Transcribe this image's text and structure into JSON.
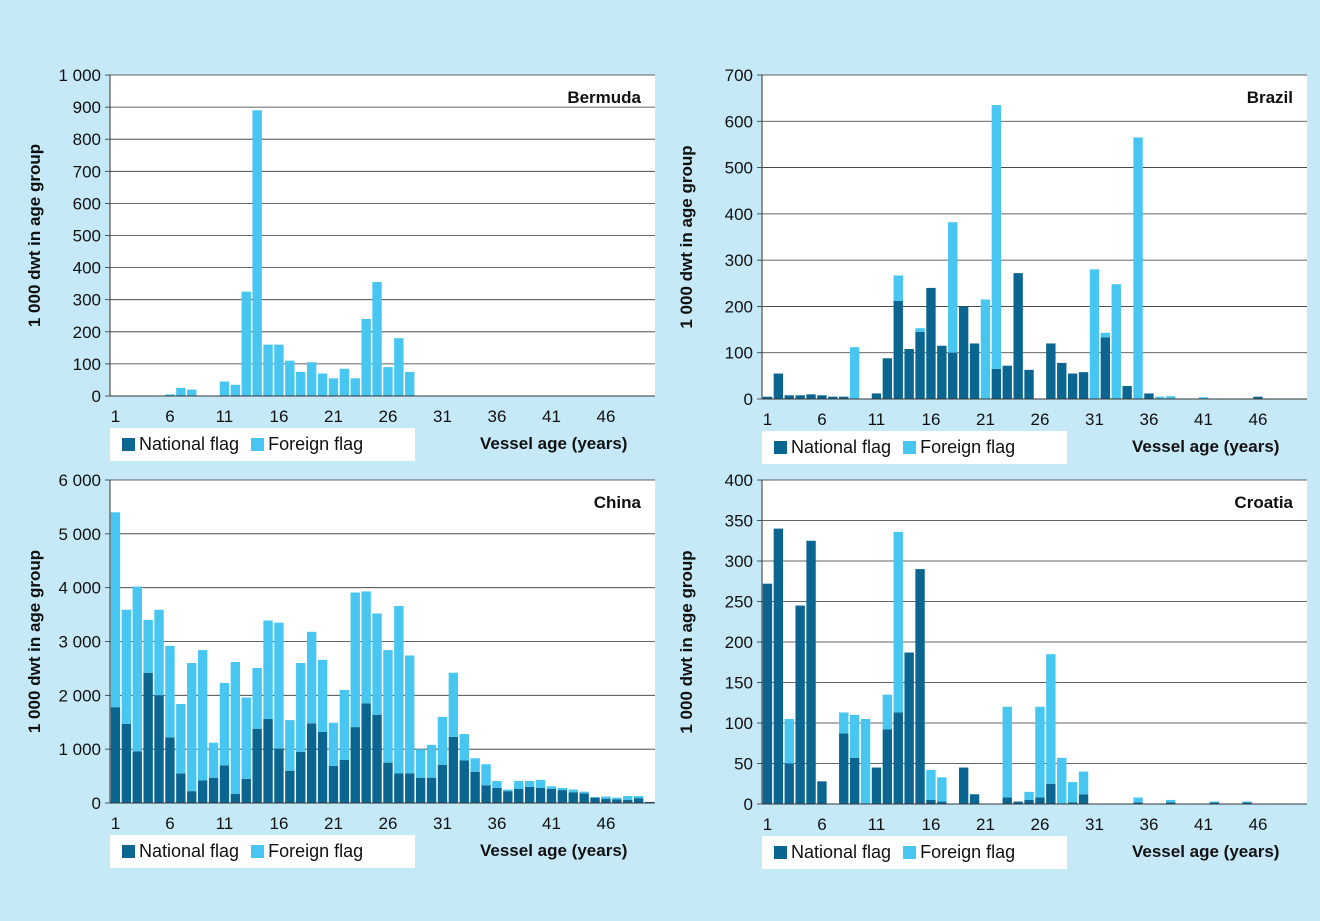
{
  "legend": {
    "national": "National flag",
    "foreign": "Foreign flag"
  },
  "colors": {
    "national": "#0a6690",
    "foreign": "#46c6f0",
    "background": "#c6e9f8",
    "plot": "#ffffff"
  },
  "chart_data": [
    {
      "type": "bar",
      "stacked": true,
      "title": "Bermuda",
      "xlabel": "Vessel age (years)",
      "ylabel": "1 000 dwt in age group",
      "ylim": [
        0,
        1000
      ],
      "yticks": [
        "0",
        "100",
        "200",
        "300",
        "400",
        "500",
        "600",
        "700",
        "800",
        "900",
        "1 000"
      ],
      "xticks": [
        "1",
        "6",
        "11",
        "16",
        "21",
        "26",
        "31",
        "36",
        "41",
        "46"
      ],
      "categories": [
        1,
        2,
        3,
        4,
        5,
        6,
        7,
        8,
        9,
        10,
        11,
        12,
        13,
        14,
        15,
        16,
        17,
        18,
        19,
        20,
        21,
        22,
        23,
        24,
        25,
        26,
        27,
        28,
        29,
        30,
        31,
        32,
        33,
        34,
        35,
        36,
        37,
        38,
        39,
        40,
        41,
        42,
        43,
        44,
        45,
        46,
        47,
        48,
        49,
        50
      ],
      "series": [
        {
          "name": "National flag",
          "values": [
            0,
            0,
            0,
            0,
            0,
            0,
            0,
            0,
            0,
            0,
            0,
            0,
            0,
            0,
            0,
            0,
            0,
            0,
            0,
            0,
            0,
            0,
            0,
            0,
            0,
            0,
            0,
            0,
            0,
            0,
            0,
            0,
            0,
            0,
            0,
            0,
            0,
            0,
            0,
            0,
            0,
            0,
            0,
            0,
            0,
            0,
            0,
            0,
            0,
            0
          ]
        },
        {
          "name": "Foreign flag",
          "values": [
            0,
            0,
            0,
            0,
            0,
            5,
            25,
            20,
            0,
            0,
            45,
            35,
            325,
            890,
            160,
            160,
            110,
            75,
            105,
            70,
            55,
            85,
            55,
            240,
            355,
            90,
            180,
            75,
            0,
            0,
            0,
            0,
            0,
            0,
            0,
            0,
            0,
            0,
            0,
            0,
            0,
            0,
            0,
            0,
            0,
            0,
            0,
            0,
            0,
            0
          ]
        }
      ]
    },
    {
      "type": "bar",
      "stacked": true,
      "title": "Brazil",
      "xlabel": "Vessel age (years)",
      "ylabel": "1 000 dwt in age group",
      "ylim": [
        0,
        700
      ],
      "yticks": [
        "0",
        "100",
        "200",
        "300",
        "400",
        "500",
        "600",
        "700"
      ],
      "xticks": [
        "1",
        "6",
        "11",
        "16",
        "21",
        "26",
        "31",
        "36",
        "41",
        "46"
      ],
      "categories": [
        1,
        2,
        3,
        4,
        5,
        6,
        7,
        8,
        9,
        10,
        11,
        12,
        13,
        14,
        15,
        16,
        17,
        18,
        19,
        20,
        21,
        22,
        23,
        24,
        25,
        26,
        27,
        28,
        29,
        30,
        31,
        32,
        33,
        34,
        35,
        36,
        37,
        38,
        39,
        40,
        41,
        42,
        43,
        44,
        45,
        46,
        47,
        48,
        49,
        50
      ],
      "series": [
        {
          "name": "National flag",
          "values": [
            5,
            55,
            8,
            8,
            10,
            8,
            5,
            5,
            0,
            0,
            12,
            88,
            212,
            108,
            145,
            240,
            115,
            100,
            200,
            120,
            0,
            65,
            72,
            272,
            63,
            0,
            120,
            78,
            55,
            58,
            0,
            133,
            0,
            28,
            0,
            12,
            0,
            0,
            0,
            0,
            0,
            0,
            0,
            0,
            0,
            5,
            0,
            0,
            0,
            0
          ]
        },
        {
          "name": "Foreign flag",
          "values": [
            0,
            0,
            0,
            0,
            0,
            0,
            0,
            0,
            112,
            0,
            0,
            0,
            55,
            0,
            8,
            0,
            0,
            282,
            0,
            0,
            215,
            570,
            0,
            0,
            0,
            0,
            0,
            0,
            0,
            0,
            280,
            10,
            248,
            0,
            565,
            0,
            5,
            6,
            0,
            0,
            4,
            0,
            0,
            0,
            0,
            0,
            0,
            0,
            0,
            0
          ]
        }
      ]
    },
    {
      "type": "bar",
      "stacked": true,
      "title": "China",
      "xlabel": "Vessel age (years)",
      "ylabel": "1 000 dwt in age group",
      "ylim": [
        0,
        6000
      ],
      "yticks": [
        "0",
        "1 000",
        "2 000",
        "3 000",
        "4 000",
        "5 000",
        "6 000"
      ],
      "xticks": [
        "1",
        "6",
        "11",
        "16",
        "21",
        "26",
        "31",
        "36",
        "41",
        "46"
      ],
      "categories": [
        1,
        2,
        3,
        4,
        5,
        6,
        7,
        8,
        9,
        10,
        11,
        12,
        13,
        14,
        15,
        16,
        17,
        18,
        19,
        20,
        21,
        22,
        23,
        24,
        25,
        26,
        27,
        28,
        29,
        30,
        31,
        32,
        33,
        34,
        35,
        36,
        37,
        38,
        39,
        40,
        41,
        42,
        43,
        44,
        45,
        46,
        47,
        48,
        49,
        50
      ],
      "series": [
        {
          "name": "National flag",
          "values": [
            1780,
            1470,
            960,
            2420,
            2000,
            1220,
            550,
            220,
            420,
            470,
            700,
            170,
            450,
            1380,
            1560,
            1010,
            600,
            950,
            1480,
            1320,
            690,
            800,
            1410,
            1850,
            1640,
            750,
            550,
            550,
            470,
            470,
            710,
            1230,
            790,
            580,
            330,
            280,
            220,
            260,
            300,
            280,
            260,
            240,
            200,
            180,
            100,
            80,
            70,
            60,
            90,
            20
          ]
        },
        {
          "name": "Foreign flag",
          "values": [
            3620,
            2120,
            3060,
            980,
            1590,
            1700,
            1290,
            2380,
            2420,
            650,
            1530,
            2450,
            1510,
            1130,
            1830,
            2340,
            940,
            1650,
            1700,
            1340,
            800,
            1300,
            2500,
            2080,
            1880,
            2090,
            3110,
            2190,
            530,
            610,
            890,
            1190,
            490,
            250,
            390,
            130,
            30,
            150,
            110,
            150,
            50,
            40,
            50,
            30,
            10,
            40,
            30,
            70,
            40,
            0
          ]
        }
      ]
    },
    {
      "type": "bar",
      "stacked": true,
      "title": "Croatia",
      "xlabel": "Vessel age (years)",
      "ylabel": "1 000 dwt in age group",
      "ylim": [
        0,
        400
      ],
      "yticks": [
        "0",
        "50",
        "100",
        "150",
        "200",
        "250",
        "300",
        "350",
        "400"
      ],
      "xticks": [
        "1",
        "6",
        "11",
        "16",
        "21",
        "26",
        "31",
        "36",
        "41",
        "46"
      ],
      "categories": [
        1,
        2,
        3,
        4,
        5,
        6,
        7,
        8,
        9,
        10,
        11,
        12,
        13,
        14,
        15,
        16,
        17,
        18,
        19,
        20,
        21,
        22,
        23,
        24,
        25,
        26,
        27,
        28,
        29,
        30,
        31,
        32,
        33,
        34,
        35,
        36,
        37,
        38,
        39,
        40,
        41,
        42,
        43,
        44,
        45,
        46,
        47,
        48,
        49,
        50
      ],
      "series": [
        {
          "name": "National flag",
          "values": [
            272,
            340,
            50,
            245,
            325,
            28,
            0,
            87,
            57,
            0,
            45,
            92,
            113,
            187,
            290,
            5,
            3,
            0,
            45,
            12,
            0,
            0,
            8,
            3,
            5,
            8,
            25,
            0,
            2,
            12,
            0,
            0,
            0,
            0,
            2,
            0,
            0,
            2,
            0,
            0,
            0,
            2,
            0,
            0,
            2,
            0,
            0,
            0,
            0,
            0
          ]
        },
        {
          "name": "Foreign flag",
          "values": [
            0,
            0,
            55,
            0,
            0,
            0,
            0,
            26,
            53,
            105,
            0,
            43,
            223,
            0,
            0,
            37,
            30,
            0,
            0,
            0,
            0,
            0,
            112,
            0,
            10,
            112,
            160,
            57,
            25,
            28,
            0,
            0,
            0,
            0,
            6,
            0,
            0,
            3,
            0,
            0,
            0,
            1,
            0,
            0,
            1,
            0,
            0,
            0,
            0,
            0
          ]
        }
      ]
    }
  ]
}
